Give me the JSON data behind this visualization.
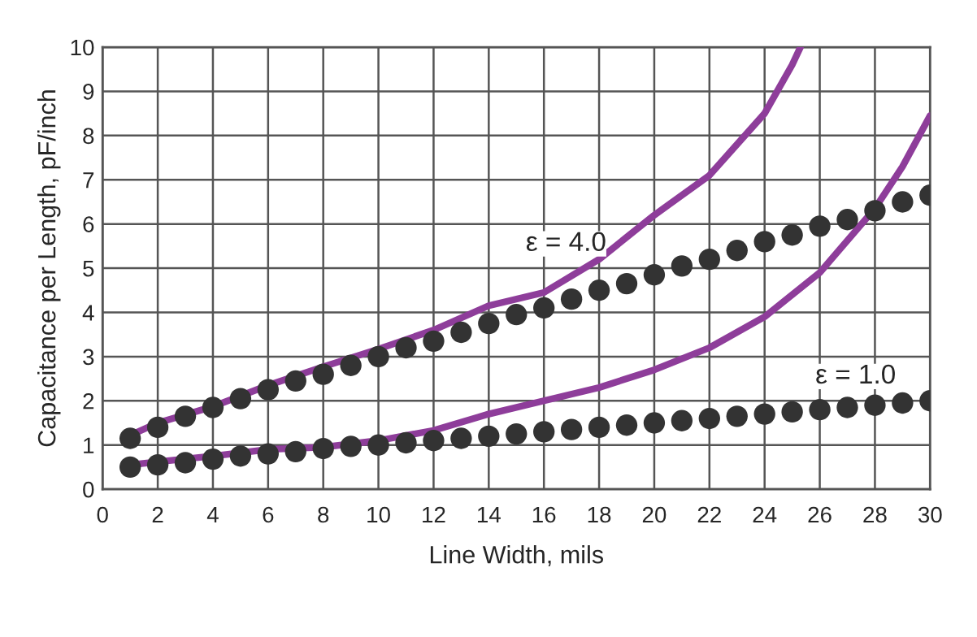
{
  "chart_data": {
    "type": "scatter",
    "xlabel": "Line Width, mils",
    "ylabel": "Capacitance per Length, pF/inch",
    "xlim": [
      0,
      30
    ],
    "ylim": [
      0,
      10
    ],
    "xticks": [
      0,
      2,
      4,
      6,
      8,
      10,
      12,
      14,
      16,
      18,
      20,
      22,
      24,
      26,
      28,
      30
    ],
    "yticks": [
      0,
      1,
      2,
      3,
      4,
      5,
      6,
      7,
      8,
      9,
      10
    ],
    "grid": true,
    "series": [
      {
        "marker": "circle",
        "color": "#333333",
        "x": [
          1,
          2,
          3,
          4,
          5,
          6,
          7,
          8,
          9,
          10,
          11,
          12,
          13,
          14,
          15,
          16,
          17,
          18,
          19,
          20,
          21,
          22,
          23,
          24,
          25,
          26,
          27,
          28,
          29,
          30
        ],
        "values": [
          1.15,
          1.4,
          1.65,
          1.85,
          2.05,
          2.25,
          2.45,
          2.6,
          2.8,
          3.0,
          3.2,
          3.35,
          3.55,
          3.75,
          3.95,
          4.1,
          4.3,
          4.5,
          4.65,
          4.85,
          5.05,
          5.2,
          5.4,
          5.6,
          5.75,
          5.95,
          6.1,
          6.3,
          6.5,
          6.65
        ]
      },
      {
        "marker": "circle",
        "color": "#333333",
        "x": [
          1,
          2,
          3,
          4,
          5,
          6,
          7,
          8,
          9,
          10,
          11,
          12,
          13,
          14,
          15,
          16,
          17,
          18,
          19,
          20,
          21,
          22,
          23,
          24,
          25,
          26,
          27,
          28,
          29,
          30
        ],
        "values": [
          0.5,
          0.55,
          0.6,
          0.68,
          0.75,
          0.8,
          0.85,
          0.92,
          0.97,
          1.0,
          1.05,
          1.1,
          1.15,
          1.2,
          1.25,
          1.3,
          1.35,
          1.4,
          1.45,
          1.5,
          1.55,
          1.6,
          1.65,
          1.7,
          1.75,
          1.8,
          1.85,
          1.9,
          1.95,
          2.0
        ]
      },
      {
        "type": "line",
        "color": "#8e3d9a",
        "x": [
          1,
          2,
          4,
          6,
          8,
          10,
          12,
          14,
          16,
          18,
          20,
          22,
          24,
          25,
          25.3
        ],
        "values": [
          1.22,
          1.5,
          1.87,
          2.35,
          2.77,
          3.17,
          3.6,
          4.15,
          4.45,
          5.2,
          6.2,
          7.1,
          8.5,
          9.6,
          10
        ]
      },
      {
        "type": "line",
        "color": "#8e3d9a",
        "x": [
          1,
          2,
          4,
          6,
          8,
          10,
          12,
          14,
          16,
          18,
          20,
          22,
          24,
          26,
          28,
          29,
          30
        ],
        "values": [
          0.55,
          0.62,
          0.75,
          0.9,
          0.95,
          1.1,
          1.33,
          1.7,
          2.0,
          2.3,
          2.7,
          3.2,
          3.9,
          4.9,
          6.35,
          7.3,
          8.45
        ]
      }
    ],
    "annotations": [
      "ε = 4.0",
      "ε = 1.0"
    ]
  }
}
